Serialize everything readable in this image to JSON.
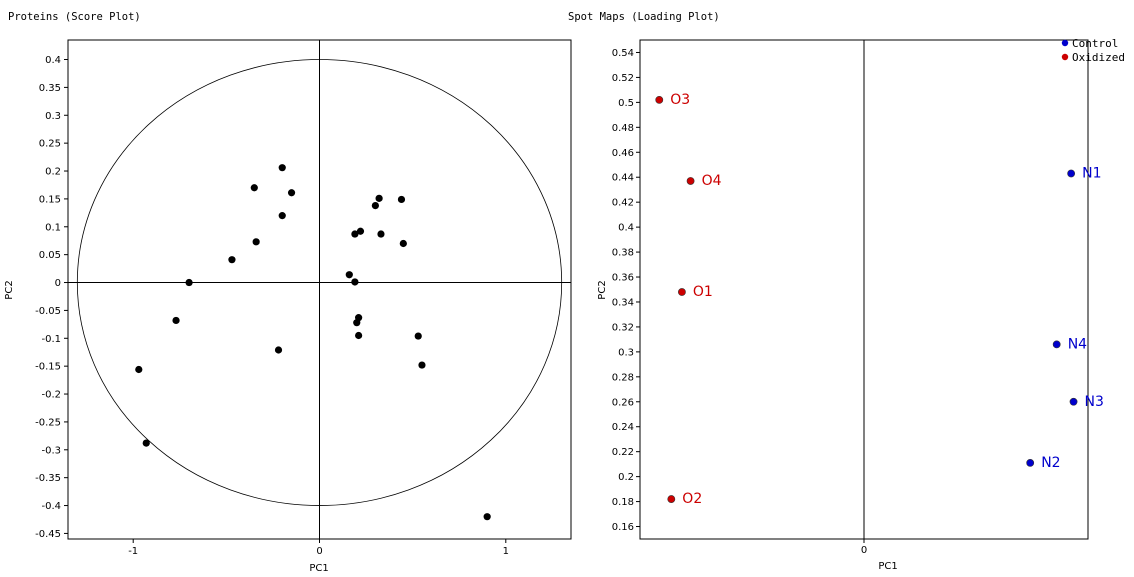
{
  "colors": {
    "control": "#0000cc",
    "oxidized": "#cc0000",
    "point": "#000000"
  },
  "chart_data": [
    {
      "type": "scatter",
      "title": "Proteins (Score Plot)",
      "xlabel": "PC1",
      "ylabel": "PC2",
      "xlim": [
        -1.35,
        1.35
      ],
      "ylim": [
        -0.46,
        0.435
      ],
      "xticks": [
        -1,
        0,
        1
      ],
      "xtick_labels": [
        "-1",
        "0",
        "1"
      ],
      "yticks": [
        0.4,
        0.35,
        0.3,
        0.25,
        0.2,
        0.15,
        0.1,
        0.05,
        0,
        -0.05,
        -0.1,
        -0.15,
        -0.2,
        -0.25,
        -0.3,
        -0.35,
        -0.4,
        -0.45
      ],
      "ytick_labels": [
        "0.4",
        "0.35",
        "0.3",
        "0.25",
        "0.2",
        "0.15",
        "0.1",
        "0.05",
        "0",
        "-0.05",
        "-0.1",
        "-0.15",
        "-0.2",
        "-0.25",
        "-0.3",
        "-0.35",
        "-0.4",
        "-0.45"
      ],
      "reference_circle": {
        "rx": 1.3,
        "ry": 0.4
      },
      "series": [
        {
          "points": [
            [
              -0.97,
              -0.156
            ],
            [
              -0.93,
              -0.288
            ],
            [
              -0.77,
              -0.068
            ],
            [
              -0.7,
              0.0
            ],
            [
              -0.47,
              0.041
            ],
            [
              -0.34,
              0.073
            ],
            [
              -0.35,
              0.17
            ],
            [
              -0.2,
              0.206
            ],
            [
              -0.2,
              0.12
            ],
            [
              -0.15,
              0.161
            ],
            [
              -0.22,
              -0.121
            ],
            [
              0.16,
              0.014
            ],
            [
              0.19,
              0.001
            ],
            [
              0.2,
              -0.072
            ],
            [
              0.21,
              -0.063
            ],
            [
              0.21,
              -0.095
            ],
            [
              0.19,
              0.087
            ],
            [
              0.22,
              0.092
            ],
            [
              0.3,
              0.138
            ],
            [
              0.32,
              0.151
            ],
            [
              0.33,
              0.087
            ],
            [
              0.44,
              0.149
            ],
            [
              0.45,
              0.07
            ],
            [
              0.53,
              -0.096
            ],
            [
              0.55,
              -0.148
            ],
            [
              0.9,
              -0.42
            ]
          ]
        }
      ]
    },
    {
      "type": "scatter",
      "title": "Spot Maps (Loading Plot)",
      "xlabel": "PC1",
      "ylabel": "PC2",
      "xlim": [
        -0.465,
        0.465
      ],
      "ylim": [
        0.15,
        0.55
      ],
      "xticks": [
        0
      ],
      "xtick_labels": [
        "0"
      ],
      "yticks": [
        0.54,
        0.52,
        0.5,
        0.48,
        0.46,
        0.44,
        0.42,
        0.4,
        0.38,
        0.36,
        0.34,
        0.32,
        0.3,
        0.28,
        0.26,
        0.24,
        0.22,
        0.2,
        0.18,
        0.16
      ],
      "ytick_labels": [
        "0.54",
        "0.52",
        "0.5",
        "0.48",
        "0.46",
        "0.44",
        "0.42",
        "0.4",
        "0.38",
        "0.36",
        "0.34",
        "0.32",
        "0.3",
        "0.28",
        "0.26",
        "0.24",
        "0.22",
        "0.2",
        "0.18",
        "0.16"
      ],
      "legend_position": "top-right",
      "series": [
        {
          "name": "Control",
          "color": "#0000cc",
          "points": [
            {
              "label": "N1",
              "x": 0.43,
              "y": 0.443
            },
            {
              "label": "N4",
              "x": 0.4,
              "y": 0.306
            },
            {
              "label": "N3",
              "x": 0.435,
              "y": 0.26
            },
            {
              "label": "N2",
              "x": 0.345,
              "y": 0.211
            }
          ]
        },
        {
          "name": "Oxidized",
          "color": "#cc0000",
          "points": [
            {
              "label": "O3",
              "x": -0.425,
              "y": 0.502
            },
            {
              "label": "O4",
              "x": -0.36,
              "y": 0.437
            },
            {
              "label": "O1",
              "x": -0.378,
              "y": 0.348
            },
            {
              "label": "O2",
              "x": -0.4,
              "y": 0.182
            }
          ]
        }
      ]
    }
  ]
}
